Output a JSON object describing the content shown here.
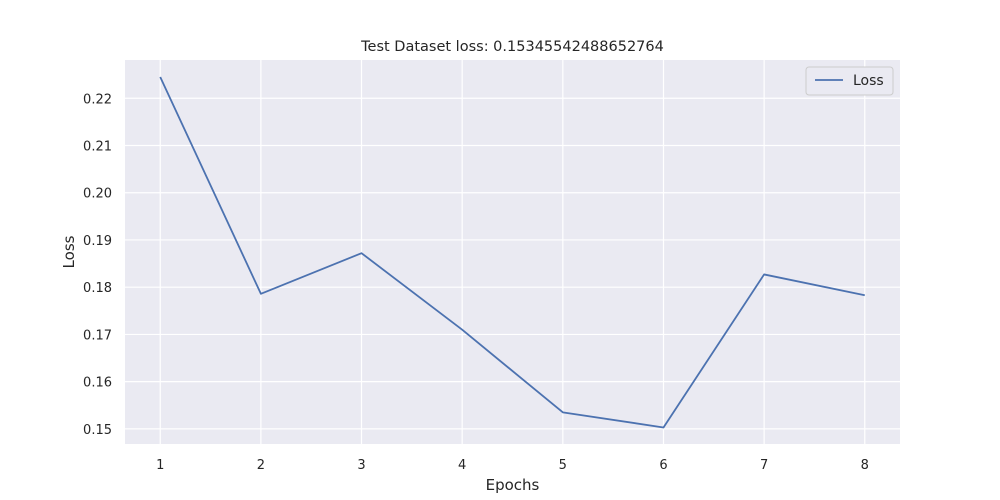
{
  "chart_data": {
    "type": "line",
    "title": "Test Dataset loss: 0.15345542488652764",
    "xlabel": "Epochs",
    "ylabel": "Loss",
    "x": [
      1,
      2,
      3,
      4,
      5,
      6,
      7,
      8
    ],
    "series": [
      {
        "name": "Loss",
        "color": "#4c72b0",
        "values": [
          0.2245,
          0.1786,
          0.1872,
          0.171,
          0.1535,
          0.1503,
          0.1827,
          0.1783
        ]
      }
    ],
    "xticks": [
      "1",
      "2",
      "3",
      "4",
      "5",
      "6",
      "7",
      "8"
    ],
    "yticks": [
      "0.15",
      "0.16",
      "0.17",
      "0.18",
      "0.19",
      "0.20",
      "0.21",
      "0.22"
    ],
    "xlim": [
      0.65,
      8.35
    ],
    "ylim": [
      0.1468,
      0.2281
    ],
    "grid": true,
    "legend_position": "top-right",
    "background_color": "#eaeaf2",
    "grid_color": "#ffffff"
  }
}
